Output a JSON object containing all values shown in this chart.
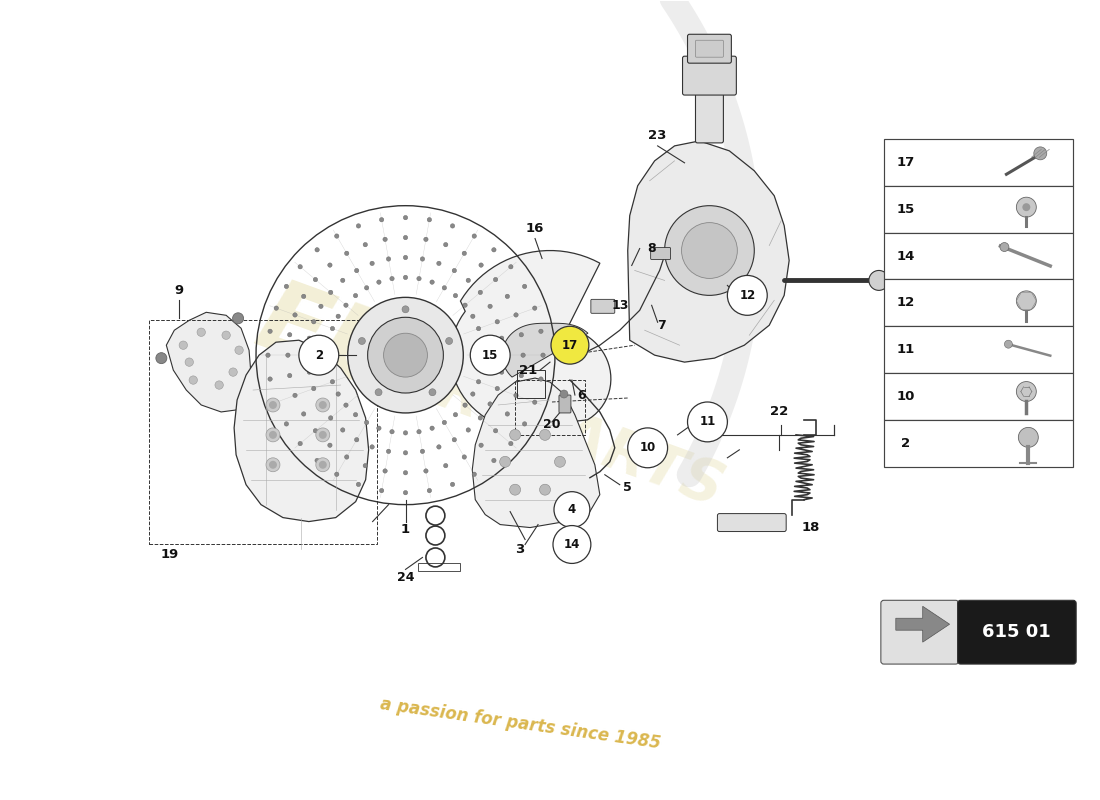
{
  "background_color": "#ffffff",
  "line_color": "#333333",
  "thin_line": "#555555",
  "label_color": "#111111",
  "circle_outline": "#333333",
  "highlight_yellow": "#f0e840",
  "legend_border": "#333333",
  "code_box_bg": "#1a1a1a",
  "code_box_text": "#ffffff",
  "diagram_code": "615 01",
  "watermark_text": "a passion for parts since 1985",
  "watermark_color": "#d4aa30",
  "eurolambda_color": "#e8e0b0",
  "legend_numbers": [
    17,
    15,
    14,
    12,
    11,
    10,
    2
  ],
  "fig_w": 11.0,
  "fig_h": 8.0,
  "dpi": 100,
  "xlim": [
    0,
    11
  ],
  "ylim": [
    0,
    8
  ]
}
